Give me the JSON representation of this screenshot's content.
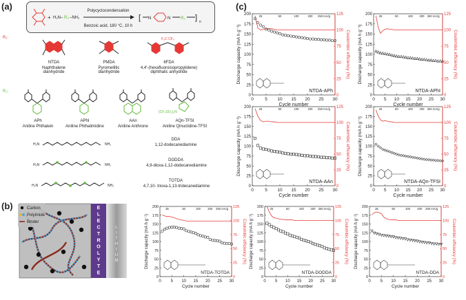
{
  "panel_a": {
    "letter": "(a)",
    "reaction": {
      "condition_top": "Polycyclocondensation",
      "condition_bottom": "Benzoic acid, 180 °C, 10 h",
      "amine_left": "H",
      "amine_right": "NH",
      "subscript": "2"
    },
    "r1_label": "R₁:",
    "r2_label": "R₂:",
    "r1_monomers": [
      {
        "abbr": "NTDA",
        "name": "Naphthalene\ndianhydride"
      },
      {
        "abbr": "PMDA",
        "name": "Pyromellitic\ndianhydride"
      },
      {
        "abbr": "6FDA",
        "name": "4,4'-(hexafluoroisopropylidene)\ndiphthalic anhydride"
      }
    ],
    "r2_monomers": [
      {
        "abbr": "APh",
        "name": "Aniline Phthalein"
      },
      {
        "abbr": "APhI",
        "name": "Aniline Phthalimidine"
      },
      {
        "abbr": "AAn",
        "name": "Aniline Anthrone"
      },
      {
        "abbr": "AQn-TFSI",
        "name": "Aniline Qinuclidine-TFSI"
      }
    ],
    "tfsi_text": "(CF₃SO₂)₂N",
    "diamines": [
      {
        "abbr": "DDA",
        "name": "1,12-dodecanediamine"
      },
      {
        "abbr": "DODDA",
        "name": "4,9-dioxa-1,12-dodecanediamine"
      },
      {
        "abbr": "TOTDA",
        "name": "4,7,10- trioxa-1,13-tridecanediamine"
      }
    ],
    "h2n": "H₂N",
    "nh2": "NH₂"
  },
  "panel_b": {
    "letter": "(b)",
    "legend": [
      "Carbon",
      "Polyimide",
      "Binder"
    ],
    "electrolyte": "ELECTROLYTE",
    "lithium": "LITHIUM"
  },
  "panel_c": {
    "letter": "(c)"
  },
  "chart_data": [
    {
      "id": "NTDA-APh",
      "type": "scatter",
      "label": "NTDA-APh",
      "xlabel": "Cycle number",
      "ylabel": "Discharge capacity (mA h g⁻¹)",
      "y2label": "Coulombic efficiency (%)",
      "xlim": [
        0,
        30
      ],
      "ylim": [
        0,
        200
      ],
      "y2lim": [
        0,
        125
      ],
      "xticks": [
        0,
        5,
        10,
        15,
        20,
        25,
        30
      ],
      "yticks": [
        0,
        25,
        50,
        75,
        100,
        125,
        150,
        175,
        200
      ],
      "y2ticks": [
        0,
        25,
        50,
        75,
        100,
        125
      ],
      "rates": [
        "25",
        "50",
        "100",
        "200",
        "250 mA/g"
      ],
      "marker": "circle",
      "capacity": [
        188,
        178,
        172,
        168,
        162,
        160,
        157,
        155,
        153,
        151,
        148,
        147,
        146,
        145,
        144,
        143,
        142,
        141,
        140,
        139,
        138,
        138,
        137,
        137,
        136,
        136,
        135,
        135,
        134,
        134
      ],
      "efficiency": [
        122,
        103,
        100,
        101,
        102,
        102,
        102,
        101,
        100,
        100,
        100,
        100,
        100,
        100,
        100,
        100,
        100,
        100,
        100,
        100,
        100,
        100,
        100,
        100,
        100,
        100,
        100,
        100,
        100,
        100
      ]
    },
    {
      "id": "NTDA-APhI",
      "type": "scatter",
      "label": "NTDA-APhI",
      "xlabel": "Cycle number",
      "ylabel": "Discharge capacity (mA h g⁻¹)",
      "y2label": "Coulombic efficiency (%)",
      "xlim": [
        0,
        30
      ],
      "ylim": [
        0,
        200
      ],
      "y2lim": [
        0,
        125
      ],
      "xticks": [
        0,
        5,
        10,
        15,
        20,
        25,
        30
      ],
      "yticks": [
        0,
        25,
        50,
        75,
        100,
        125,
        150,
        175,
        200
      ],
      "y2ticks": [
        0,
        25,
        50,
        75,
        100,
        125
      ],
      "rates": [
        "25",
        "50",
        "100",
        "200",
        "250 mA/g"
      ],
      "marker": "triangle",
      "capacity": [
        108,
        106,
        104,
        103,
        102,
        101,
        100,
        98,
        97,
        96,
        95,
        95,
        94,
        93,
        92,
        92,
        91,
        90,
        90,
        89,
        88,
        88,
        87,
        86,
        86,
        85,
        85,
        84,
        84,
        84
      ],
      "efficiency": [
        122,
        104,
        95,
        99,
        101,
        102,
        101,
        101,
        100,
        100,
        100,
        100,
        100,
        100,
        100,
        100,
        100,
        100,
        100,
        100,
        100,
        100,
        100,
        100,
        100,
        100,
        100,
        100,
        100,
        100
      ]
    },
    {
      "id": "NTDA-AAn",
      "type": "scatter",
      "label": "NTDA-AAn",
      "xlabel": "Cycle number",
      "ylabel": "Discharge capacity (mA h g⁻¹)",
      "y2label": "Coulombic efficiency (%)",
      "xlim": [
        0,
        30
      ],
      "ylim": [
        0,
        200
      ],
      "y2lim": [
        0,
        125
      ],
      "xticks": [
        0,
        5,
        10,
        15,
        20,
        25,
        30
      ],
      "yticks": [
        0,
        25,
        50,
        75,
        100,
        125,
        150,
        175,
        200
      ],
      "y2ticks": [
        0,
        25,
        50,
        75,
        100,
        125
      ],
      "rates": [
        "25",
        "50",
        "100",
        "200",
        "250 mA/g"
      ],
      "marker": "square",
      "capacity": [
        120,
        102,
        95,
        93,
        92,
        90,
        88,
        87,
        86,
        85,
        83,
        82,
        81,
        80,
        80,
        79,
        78,
        77,
        76,
        76,
        75,
        74,
        74,
        73,
        72,
        72,
        71,
        71,
        70,
        70
      ],
      "efficiency": [
        122,
        110,
        103,
        101,
        102,
        102,
        101,
        101,
        100,
        100,
        100,
        100,
        100,
        100,
        100,
        100,
        100,
        100,
        100,
        100,
        100,
        100,
        100,
        100,
        100,
        100,
        100,
        100,
        100,
        100
      ]
    },
    {
      "id": "NTDA-AQn-TFSI",
      "type": "scatter",
      "label": "NTDA-AQn-TFSI",
      "xlabel": "Cycle number",
      "ylabel": "Discharge capacity (mA h g⁻¹)",
      "y2label": "Coulombic efficiency (%)",
      "xlim": [
        0,
        30
      ],
      "ylim": [
        0,
        200
      ],
      "y2lim": [
        0,
        125
      ],
      "xticks": [
        0,
        5,
        10,
        15,
        20,
        25,
        30
      ],
      "yticks": [
        0,
        25,
        50,
        75,
        100,
        125,
        150,
        175,
        200
      ],
      "y2ticks": [
        0,
        25,
        50,
        75,
        100,
        125
      ],
      "rates": [
        "25",
        "50",
        "100",
        "200",
        "250 mA/g"
      ],
      "marker": "diamond",
      "capacity": [
        105,
        100,
        96,
        92,
        90,
        88,
        86,
        84,
        82,
        80,
        78,
        77,
        76,
        75,
        74,
        73,
        72,
        71,
        70,
        69,
        68,
        67,
        66,
        66,
        65,
        65,
        64,
        64,
        63,
        63
      ],
      "efficiency": [
        120,
        110,
        104,
        102,
        103,
        102,
        101,
        101,
        100,
        100,
        100,
        100,
        100,
        100,
        100,
        100,
        100,
        100,
        100,
        100,
        100,
        100,
        100,
        100,
        100,
        100,
        100,
        100,
        100,
        100
      ]
    },
    {
      "id": "NTDA-TOTDA",
      "type": "scatter",
      "label": "NTDA-TOTDA",
      "xlabel": "Cycle number",
      "ylabel": "Discharge capacity (mA h g⁻¹)",
      "y2label": "Coulombic efficiency (%)",
      "xlim": [
        0,
        30
      ],
      "ylim": [
        0,
        200
      ],
      "y2lim": [
        0,
        125
      ],
      "xticks": [
        0,
        5,
        10,
        15,
        20,
        25,
        30
      ],
      "yticks": [
        0,
        25,
        50,
        75,
        100,
        125,
        150,
        175,
        200
      ],
      "y2ticks": [
        0,
        25,
        50,
        75,
        100,
        125
      ],
      "rates": [
        "25",
        "50",
        "100",
        "200",
        "250 mA/g"
      ],
      "marker": "circle",
      "capacity": [
        130,
        135,
        138,
        140,
        141,
        141,
        140,
        138,
        137,
        136,
        131,
        129,
        127,
        125,
        123,
        119,
        117,
        115,
        113,
        112,
        106,
        104,
        103,
        102,
        101,
        96,
        95,
        94,
        94,
        93
      ],
      "efficiency": [
        110,
        108,
        107,
        107,
        106,
        105,
        103,
        102,
        101,
        100,
        99,
        99,
        99,
        99,
        99,
        99,
        99,
        99,
        99,
        99,
        99,
        99,
        99,
        99,
        99,
        99,
        99,
        99,
        99,
        99
      ]
    },
    {
      "id": "NTDA-DODDA",
      "type": "scatter",
      "label": "NTDA-DODDA",
      "xlabel": "Cycle number",
      "ylabel": "Discharge capacity (mA h g⁻¹)",
      "y2label": "Coulombic efficiency (%)",
      "xlim": [
        0,
        30
      ],
      "ylim": [
        0,
        200
      ],
      "y2lim": [
        0,
        125
      ],
      "xticks": [
        0,
        5,
        10,
        15,
        20,
        25,
        30
      ],
      "yticks": [
        0,
        25,
        50,
        75,
        100,
        125,
        150,
        175,
        200
      ],
      "y2ticks": [
        0,
        25,
        50,
        75,
        100,
        125
      ],
      "rates": [
        "25",
        "50",
        "100",
        "200",
        "250 mA/g"
      ],
      "marker": "square",
      "capacity": [
        152,
        148,
        143,
        140,
        137,
        133,
        130,
        128,
        124,
        122,
        118,
        116,
        114,
        112,
        110,
        106,
        104,
        102,
        100,
        98,
        94,
        92,
        90,
        88,
        86,
        82,
        80,
        78,
        76,
        75
      ],
      "efficiency": [
        125,
        115,
        108,
        105,
        104,
        103,
        102,
        102,
        101,
        101,
        101,
        101,
        100,
        100,
        100,
        100,
        100,
        100,
        100,
        100,
        100,
        100,
        100,
        100,
        100,
        100,
        100,
        100,
        100,
        100
      ]
    },
    {
      "id": "NTDA-DDA",
      "type": "scatter",
      "label": "NTDA-DDA",
      "xlabel": "Cycle number",
      "ylabel": "Discharge capacity (mA h g⁻¹)",
      "y2label": "Coulombic efficiency (%)",
      "xlim": [
        0,
        30
      ],
      "ylim": [
        0,
        200
      ],
      "y2lim": [
        0,
        125
      ],
      "xticks": [
        0,
        5,
        10,
        15,
        20,
        25,
        30
      ],
      "yticks": [
        0,
        25,
        50,
        75,
        100,
        125,
        150,
        175,
        200
      ],
      "y2ticks": [
        0,
        25,
        50,
        75,
        100,
        125
      ],
      "rates": [
        "25",
        "50",
        "100",
        "200",
        "250 mA/g"
      ],
      "marker": "triangle-down",
      "capacity": [
        130,
        124,
        122,
        120,
        118,
        117,
        116,
        115,
        114,
        113,
        111,
        110,
        109,
        108,
        107,
        105,
        104,
        103,
        102,
        101,
        99,
        98,
        97,
        96,
        96,
        94,
        93,
        93,
        92,
        92
      ],
      "efficiency": [
        110,
        114,
        115,
        114,
        112,
        106,
        103,
        102,
        101,
        101,
        101,
        100,
        100,
        100,
        100,
        100,
        100,
        100,
        100,
        100,
        100,
        100,
        100,
        100,
        100,
        100,
        100,
        100,
        100,
        100
      ]
    }
  ]
}
